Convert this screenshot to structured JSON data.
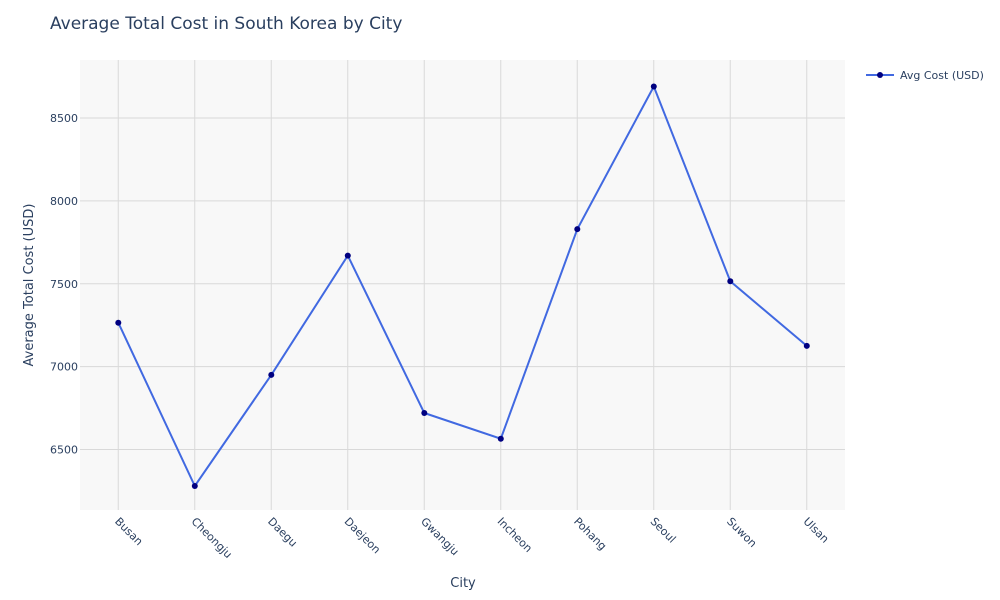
{
  "chart_data": {
    "type": "line",
    "title": "Average Total Cost in South Korea by City",
    "xlabel": "City",
    "ylabel": "Average Total Cost (USD)",
    "categories": [
      "Busan",
      "Cheongju",
      "Daegu",
      "Daejeon",
      "Gwangju",
      "Incheon",
      "Pohang",
      "Seoul",
      "Suwon",
      "Ulsan"
    ],
    "series": [
      {
        "name": "Avg Cost (USD)",
        "values": [
          7265,
          6280,
          6950,
          7670,
          6720,
          6565,
          7830,
          8690,
          7515,
          7125
        ]
      }
    ],
    "ylim": [
      6135,
      8850
    ],
    "yticks": [
      6500,
      7000,
      7500,
      8000,
      8500
    ],
    "grid": true,
    "legend": "top-right",
    "colors": {
      "line": "#4169e1",
      "marker": "#000080",
      "plot_bg": "#f8f8f8",
      "grid": "#d9d9d9",
      "text": "#2a3f5f"
    }
  }
}
